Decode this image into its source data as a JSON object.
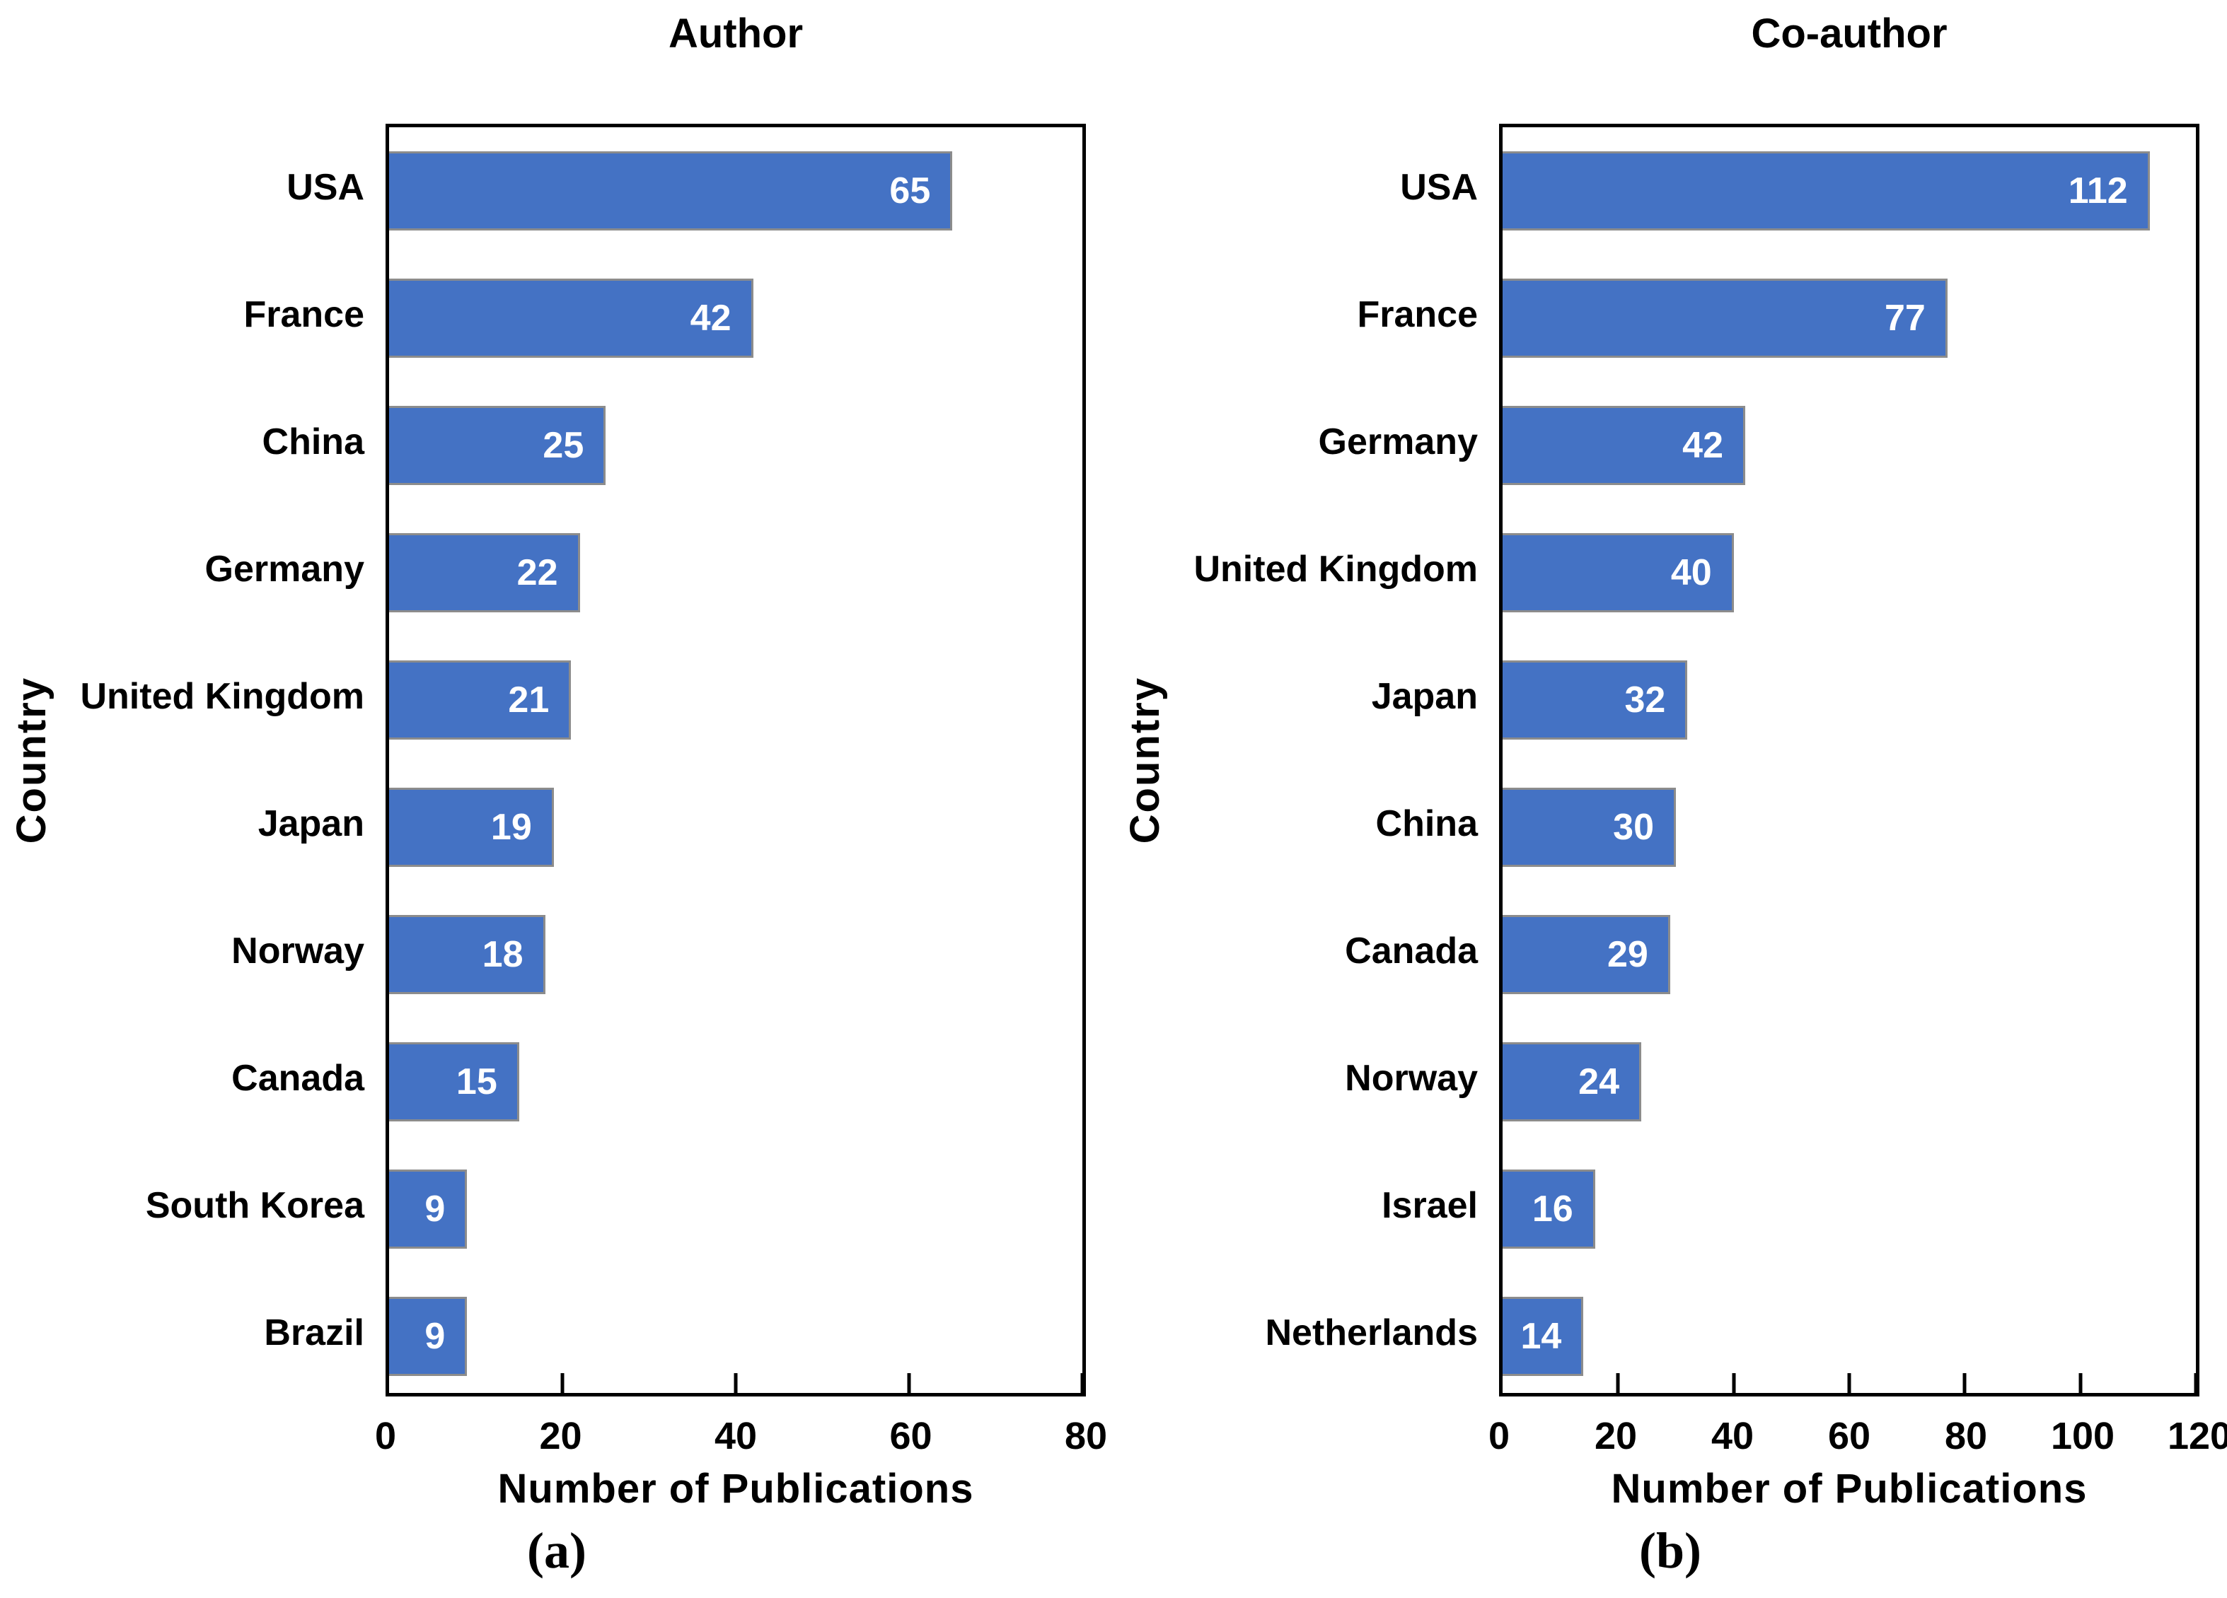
{
  "figure": {
    "background": "#ffffff",
    "text_color": "#000000"
  },
  "chart_data": [
    {
      "type": "bar",
      "orientation": "horizontal",
      "title": "Author",
      "categories": [
        "USA",
        "France",
        "China",
        "Germany",
        "United Kingdom",
        "Japan",
        "Norway",
        "Canada",
        "South Korea",
        "Brazil"
      ],
      "values": [
        65,
        42,
        25,
        22,
        21,
        19,
        18,
        15,
        9,
        9
      ],
      "xlabel": "Number of Publications",
      "ylabel": "Country",
      "xlim": [
        0,
        80
      ],
      "xticks": [
        0,
        20,
        40,
        60,
        80
      ],
      "grid": false,
      "legend": false,
      "value_labels": "inside-end, white bold",
      "bar_color": "#4472C4",
      "bar_border_color": "#8c8c8c",
      "caption": "(a)"
    },
    {
      "type": "bar",
      "orientation": "horizontal",
      "title": "Co-author",
      "categories": [
        "USA",
        "France",
        "Germany",
        "United Kingdom",
        "Japan",
        "China",
        "Canada",
        "Norway",
        "Israel",
        "Netherlands"
      ],
      "values": [
        112,
        77,
        42,
        40,
        32,
        30,
        29,
        24,
        16,
        14
      ],
      "xlabel": "Number of Publications",
      "ylabel": "Country",
      "xlim": [
        0,
        120
      ],
      "xticks": [
        0,
        20,
        40,
        60,
        80,
        100,
        120
      ],
      "grid": false,
      "legend": false,
      "value_labels": "inside-end, white bold",
      "bar_color": "#4472C4",
      "bar_border_color": "#8c8c8c",
      "caption": "(b)"
    }
  ]
}
